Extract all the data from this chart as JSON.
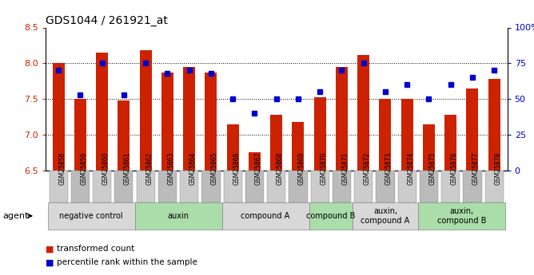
{
  "title": "GDS1044 / 261921_at",
  "samples": [
    "GSM25858",
    "GSM25859",
    "GSM25860",
    "GSM25861",
    "GSM25862",
    "GSM25863",
    "GSM25864",
    "GSM25865",
    "GSM25866",
    "GSM25867",
    "GSM25868",
    "GSM25869",
    "GSM25870",
    "GSM25871",
    "GSM25872",
    "GSM25873",
    "GSM25874",
    "GSM25875",
    "GSM25876",
    "GSM25877",
    "GSM25878"
  ],
  "bar_heights": [
    8.0,
    7.5,
    8.15,
    7.48,
    8.18,
    7.87,
    7.95,
    7.87,
    7.15,
    6.75,
    7.28,
    7.18,
    7.53,
    7.95,
    8.12,
    7.5,
    7.5,
    7.15,
    7.28,
    7.65,
    7.78
  ],
  "percentile_ranks": [
    70,
    53,
    75,
    53,
    75,
    68,
    70,
    68,
    50,
    40,
    50,
    50,
    55,
    70,
    75,
    55,
    60,
    50,
    60,
    65,
    70
  ],
  "bar_color": "#cc2200",
  "dot_color": "#0000cc",
  "ylim_left": [
    6.5,
    8.5
  ],
  "ylim_right": [
    0,
    100
  ],
  "yticks_left": [
    6.5,
    7.0,
    7.5,
    8.0,
    8.5
  ],
  "yticks_right": [
    0,
    25,
    50,
    75,
    100
  ],
  "ytick_labels_right": [
    "0",
    "25",
    "50",
    "75",
    "100%"
  ],
  "grid_lines": [
    7.0,
    7.5,
    8.0
  ],
  "groups": [
    {
      "label": "negative control",
      "start": 0,
      "end": 4,
      "color": "#d8d8d8"
    },
    {
      "label": "auxin",
      "start": 4,
      "end": 8,
      "color": "#aaddaa"
    },
    {
      "label": "compound A",
      "start": 8,
      "end": 12,
      "color": "#d8d8d8"
    },
    {
      "label": "compound B",
      "start": 12,
      "end": 14,
      "color": "#aaddaa"
    },
    {
      "label": "auxin,\ncompound A",
      "start": 14,
      "end": 17,
      "color": "#d8d8d8"
    },
    {
      "label": "auxin,\ncompound B",
      "start": 17,
      "end": 21,
      "color": "#aaddaa"
    }
  ],
  "legend_items": [
    {
      "label": "transformed count",
      "color": "#cc2200"
    },
    {
      "label": "percentile rank within the sample",
      "color": "#0000cc"
    }
  ],
  "agent_label": "agent",
  "xtick_box_color": "#cccccc",
  "xtick_box_alt_color": "#bbbbbb"
}
